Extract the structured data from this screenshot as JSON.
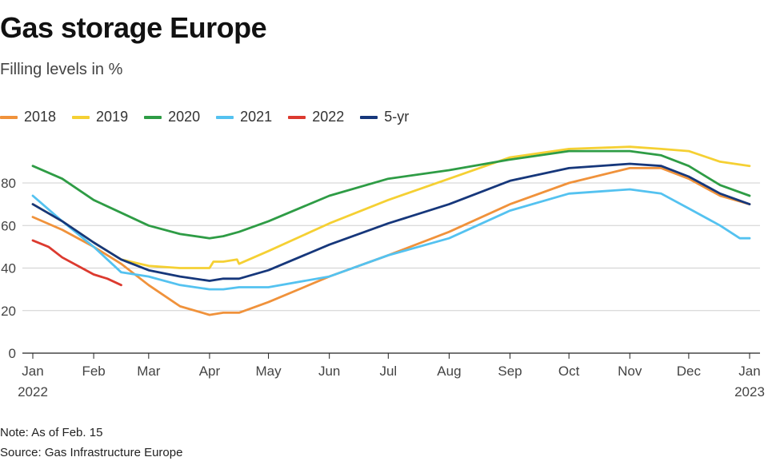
{
  "header": {
    "title": "Gas storage Europe",
    "subtitle": "Filling levels in %"
  },
  "footer": {
    "note": "Note: As of Feb. 15",
    "source": "Source: Gas Infrastructure Europe"
  },
  "chart_data": {
    "type": "line",
    "title": "Gas storage Europe",
    "subtitle": "Filling levels in %",
    "xlabel": "",
    "ylabel": "",
    "ylim": [
      0,
      100
    ],
    "yticks": [
      0,
      20,
      40,
      60,
      80
    ],
    "grid": true,
    "legend_position": "top-left",
    "x_ticks": [
      {
        "label": "Jan",
        "sub": "2022",
        "day": 0
      },
      {
        "label": "Feb",
        "sub": "",
        "day": 31
      },
      {
        "label": "Mar",
        "sub": "",
        "day": 59
      },
      {
        "label": "Apr",
        "sub": "",
        "day": 90
      },
      {
        "label": "May",
        "sub": "",
        "day": 120
      },
      {
        "label": "Jun",
        "sub": "",
        "day": 151
      },
      {
        "label": "Jul",
        "sub": "",
        "day": 181
      },
      {
        "label": "Aug",
        "sub": "",
        "day": 212
      },
      {
        "label": "Sep",
        "sub": "",
        "day": 243
      },
      {
        "label": "Oct",
        "sub": "",
        "day": 273
      },
      {
        "label": "Nov",
        "sub": "",
        "day": 304
      },
      {
        "label": "Dec",
        "sub": "",
        "day": 334
      },
      {
        "label": "Jan",
        "sub": "2023",
        "day": 365
      }
    ],
    "series": [
      {
        "name": "2018",
        "color": "#f0923b",
        "x": [
          0,
          15,
          31,
          45,
          59,
          75,
          90,
          97,
          105,
          120,
          151,
          181,
          212,
          243,
          273,
          304,
          320,
          334,
          350,
          365
        ],
        "y": [
          64,
          58,
          50,
          42,
          32,
          22,
          18,
          19,
          19,
          24,
          36,
          46,
          57,
          70,
          80,
          87,
          87,
          82,
          74,
          70
        ]
      },
      {
        "name": "2019",
        "color": "#f5d033",
        "x": [
          0,
          15,
          31,
          45,
          59,
          75,
          90,
          92,
          97,
          104,
          105,
          120,
          151,
          181,
          212,
          243,
          273,
          304,
          320,
          334,
          350,
          365
        ],
        "y": [
          70,
          62,
          52,
          44,
          41,
          40,
          40,
          43,
          43,
          44,
          42,
          48,
          61,
          72,
          82,
          92,
          96,
          97,
          96,
          95,
          90,
          88
        ]
      },
      {
        "name": "2020",
        "color": "#2e9c45",
        "x": [
          0,
          15,
          31,
          45,
          59,
          75,
          90,
          97,
          105,
          120,
          151,
          181,
          212,
          243,
          273,
          304,
          320,
          334,
          350,
          365
        ],
        "y": [
          88,
          82,
          72,
          66,
          60,
          56,
          54,
          55,
          57,
          62,
          74,
          82,
          86,
          91,
          95,
          95,
          93,
          88,
          79,
          74
        ]
      },
      {
        "name": "2021",
        "color": "#54c2f0",
        "x": [
          0,
          15,
          31,
          45,
          59,
          75,
          90,
          97,
          105,
          120,
          151,
          181,
          212,
          243,
          273,
          304,
          320,
          334,
          350,
          360,
          365
        ],
        "y": [
          74,
          62,
          50,
          38,
          36,
          32,
          30,
          30,
          31,
          31,
          36,
          46,
          54,
          67,
          75,
          77,
          75,
          68,
          60,
          54,
          54
        ]
      },
      {
        "name": "2022",
        "color": "#dc3a2f",
        "x": [
          0,
          8,
          15,
          25,
          31,
          38,
          45
        ],
        "y": [
          53,
          50,
          45,
          40,
          37,
          35,
          32
        ]
      },
      {
        "name": "5-yr",
        "color": "#16377b",
        "x": [
          0,
          15,
          31,
          45,
          59,
          75,
          90,
          97,
          105,
          120,
          151,
          181,
          212,
          243,
          273,
          304,
          320,
          334,
          350,
          365
        ],
        "y": [
          70,
          62,
          52,
          44,
          39,
          36,
          34,
          35,
          35,
          39,
          51,
          61,
          70,
          81,
          87,
          89,
          88,
          83,
          75,
          70
        ]
      }
    ]
  }
}
